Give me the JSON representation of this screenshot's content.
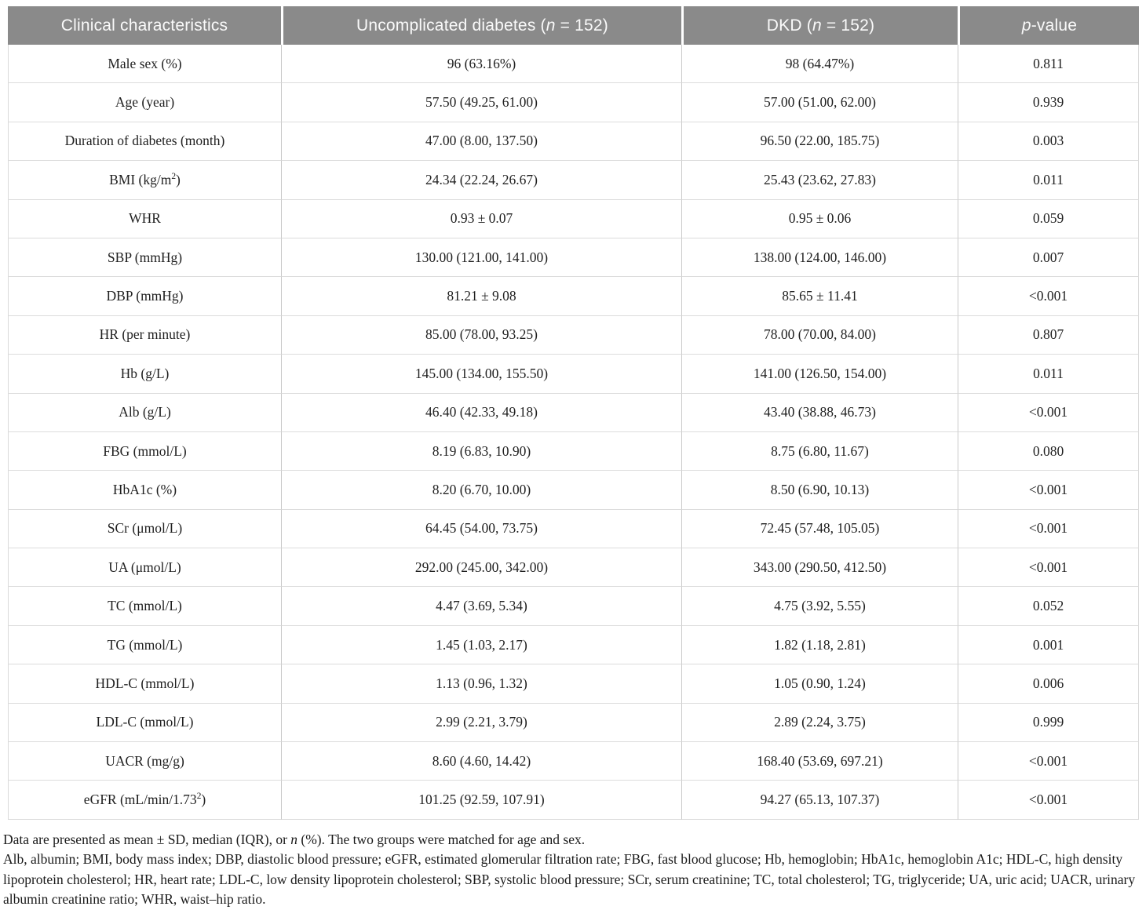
{
  "colors": {
    "header_background": "#8a8a8a",
    "header_text": "#fafafa",
    "horizontal_border": "#dcdcdc",
    "vertical_border": "#c9c9c9"
  },
  "table": {
    "header": {
      "columns": [
        {
          "key": "clinical-characteristics",
          "label": [
            "Clinical characteristics"
          ]
        },
        {
          "key": "uncomplicated-diabetes",
          "label": [
            "Uncomplicated diabetes (",
            {
              "i": "n"
            },
            " = 152)"
          ]
        },
        {
          "key": "dkd",
          "label": [
            "DKD (",
            {
              "i": "n"
            },
            " = 152)"
          ]
        },
        {
          "key": "p-value",
          "label": [
            {
              "i": "p"
            },
            "-value"
          ]
        }
      ]
    },
    "rows": [
      {
        "characteristic": [
          "Male sex (%)"
        ],
        "uncomplicated": "96 (63.16%)",
        "dkd": "98 (64.47%)",
        "p_value": "0.811"
      },
      {
        "characteristic": [
          "Age (year)"
        ],
        "uncomplicated": "57.50 (49.25, 61.00)",
        "dkd": "57.00 (51.00, 62.00)",
        "p_value": "0.939"
      },
      {
        "characteristic": [
          "Duration of diabetes (month)"
        ],
        "uncomplicated": "47.00 (8.00, 137.50)",
        "dkd": "96.50 (22.00, 185.75)",
        "p_value": "0.003"
      },
      {
        "characteristic": [
          "BMI (kg/m",
          {
            "sup": "2"
          },
          ")"
        ],
        "uncomplicated": "24.34 (22.24, 26.67)",
        "dkd": "25.43 (23.62, 27.83)",
        "p_value": "0.011"
      },
      {
        "characteristic": [
          "WHR"
        ],
        "uncomplicated": "0.93 ± 0.07",
        "dkd": "0.95 ± 0.06",
        "p_value": "0.059"
      },
      {
        "characteristic": [
          "SBP (mmHg)"
        ],
        "uncomplicated": "130.00 (121.00, 141.00)",
        "dkd": "138.00 (124.00, 146.00)",
        "p_value": "0.007"
      },
      {
        "characteristic": [
          "DBP (mmHg)"
        ],
        "uncomplicated": "81.21 ± 9.08",
        "dkd": "85.65 ± 11.41",
        "p_value": "<0.001"
      },
      {
        "characteristic": [
          "HR (per minute)"
        ],
        "uncomplicated": "85.00 (78.00, 93.25)",
        "dkd": "78.00 (70.00, 84.00)",
        "p_value": "0.807"
      },
      {
        "characteristic": [
          "Hb (g/L)"
        ],
        "uncomplicated": "145.00 (134.00, 155.50)",
        "dkd": "141.00 (126.50, 154.00)",
        "p_value": "0.011"
      },
      {
        "characteristic": [
          "Alb (g/L)"
        ],
        "uncomplicated": "46.40 (42.33, 49.18)",
        "dkd": "43.40 (38.88, 46.73)",
        "p_value": "<0.001"
      },
      {
        "characteristic": [
          "FBG (mmol/L)"
        ],
        "uncomplicated": "8.19 (6.83, 10.90)",
        "dkd": "8.75 (6.80, 11.67)",
        "p_value": "0.080"
      },
      {
        "characteristic": [
          "HbA1c (%)"
        ],
        "uncomplicated": "8.20 (6.70, 10.00)",
        "dkd": "8.50 (6.90, 10.13)",
        "p_value": "<0.001"
      },
      {
        "characteristic": [
          "SCr (μmol/L)"
        ],
        "uncomplicated": "64.45 (54.00, 73.75)",
        "dkd": "72.45 (57.48, 105.05)",
        "p_value": "<0.001"
      },
      {
        "characteristic": [
          "UA (μmol/L)"
        ],
        "uncomplicated": "292.00 (245.00, 342.00)",
        "dkd": "343.00 (290.50, 412.50)",
        "p_value": "<0.001"
      },
      {
        "characteristic": [
          "TC (mmol/L)"
        ],
        "uncomplicated": "4.47 (3.69, 5.34)",
        "dkd": "4.75 (3.92, 5.55)",
        "p_value": "0.052"
      },
      {
        "characteristic": [
          "TG (mmol/L)"
        ],
        "uncomplicated": "1.45 (1.03, 2.17)",
        "dkd": "1.82 (1.18, 2.81)",
        "p_value": "0.001"
      },
      {
        "characteristic": [
          "HDL-C (mmol/L)"
        ],
        "uncomplicated": "1.13 (0.96, 1.32)",
        "dkd": "1.05 (0.90, 1.24)",
        "p_value": "0.006"
      },
      {
        "characteristic": [
          "LDL-C (mmol/L)"
        ],
        "uncomplicated": "2.99 (2.21, 3.79)",
        "dkd": "2.89 (2.24, 3.75)",
        "p_value": "0.999"
      },
      {
        "characteristic": [
          "UACR (mg/g)"
        ],
        "uncomplicated": "8.60 (4.60, 14.42)",
        "dkd": "168.40 (53.69, 697.21)",
        "p_value": "<0.001"
      },
      {
        "characteristic": [
          "eGFR (mL/min/1.73",
          {
            "sup": "2"
          },
          ")"
        ],
        "uncomplicated": "101.25 (92.59, 107.91)",
        "dkd": "94.27 (65.13, 107.37)",
        "p_value": "<0.001"
      }
    ]
  },
  "footnotes": {
    "presentation": [
      "Data are presented as mean ± SD, median (IQR), or ",
      {
        "i": "n"
      },
      " (%). The two groups were matched for age and sex."
    ],
    "abbreviations": [
      "Alb, albumin; BMI, body mass index; DBP, diastolic blood pressure; eGFR, estimated glomerular filtration rate; FBG, fast blood glucose; Hb, hemoglobin; HbA1c, hemoglobin A1c; HDL-C, high density lipoprotein cholesterol; HR, heart rate; LDL-C, low density lipoprotein cholesterol; SBP, systolic blood pressure; SCr, serum creatinine; TC, total cholesterol; TG, triglyceride; UA, uric acid; UACR, urinary albumin creatinine ratio; WHR, waist–hip ratio."
    ]
  }
}
